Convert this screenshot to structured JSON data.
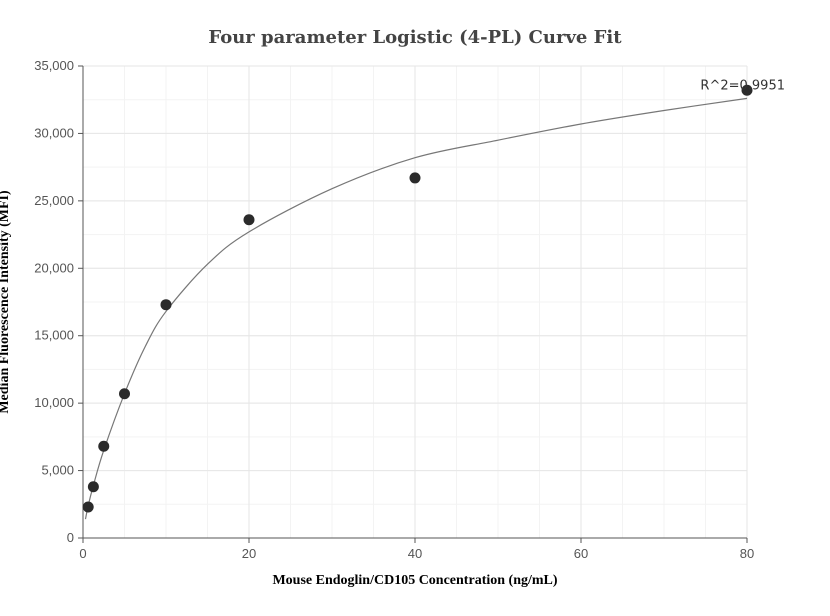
{
  "chart_data": {
    "type": "scatter",
    "title": "Four parameter Logistic (4-PL) Curve Fit",
    "xlabel": "Mouse Endoglin/CD105 Concentration (ng/mL)",
    "ylabel": "Median Fluorescence Intensity (MFI)",
    "xlim": [
      0,
      80
    ],
    "ylim": [
      0,
      35000
    ],
    "x_ticks": [
      0,
      20,
      40,
      60,
      80
    ],
    "y_ticks": [
      0,
      5000,
      10000,
      15000,
      20000,
      25000,
      30000,
      35000
    ],
    "x_tick_labels": [
      "0",
      "20",
      "40",
      "60",
      "80"
    ],
    "y_tick_labels": [
      "0",
      "5,000",
      "10,000",
      "15,000",
      "20,000",
      "25,000",
      "30,000",
      "35,000"
    ],
    "grid": true,
    "points": [
      {
        "x": 0.625,
        "y": 2300
      },
      {
        "x": 1.25,
        "y": 3800
      },
      {
        "x": 2.5,
        "y": 6800
      },
      {
        "x": 5,
        "y": 10700
      },
      {
        "x": 10,
        "y": 17300
      },
      {
        "x": 20,
        "y": 23600
      },
      {
        "x": 40,
        "y": 26700
      },
      {
        "x": 80,
        "y": 33200
      }
    ],
    "fit": {
      "model": "4PL",
      "curve": [
        [
          0.3,
          1400
        ],
        [
          0.625,
          2400
        ],
        [
          1.25,
          3900
        ],
        [
          2.5,
          6500
        ],
        [
          5,
          10700
        ],
        [
          7.5,
          14200
        ],
        [
          10,
          16800
        ],
        [
          15,
          20300
        ],
        [
          20,
          22700
        ],
        [
          30,
          25900
        ],
        [
          40,
          28200
        ],
        [
          50,
          29500
        ],
        [
          60,
          30700
        ],
        [
          70,
          31700
        ],
        [
          80,
          32600
        ]
      ]
    },
    "annotations": [
      {
        "text": "R^2=0.9951",
        "x": 80,
        "y": 33200
      }
    ]
  }
}
